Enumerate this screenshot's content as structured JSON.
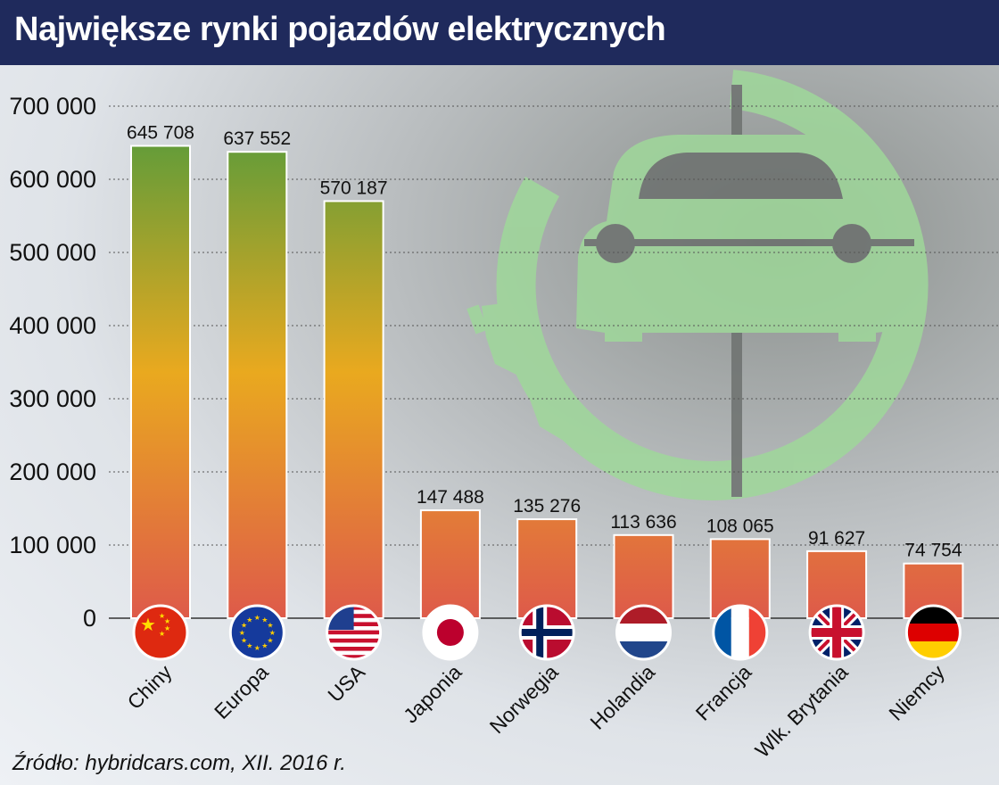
{
  "title": "Największe rynki pojazdów elektrycznych",
  "source": "Źródło: hybridcars.com, XII. 2016 r.",
  "colors": {
    "title_bg": "#1f2a5c",
    "bar_top": "#4e9a3d",
    "bar_mid": "#e9a91f",
    "bar_bottom": "#de5a4a",
    "grid": "#555555",
    "decor_green": "#9fd89a"
  },
  "chart_data": {
    "type": "bar",
    "title": "Największe rynki pojazdów elektrycznych",
    "xlabel": "",
    "ylabel": "",
    "ylim": [
      0,
      700000
    ],
    "yticks": [
      0,
      100000,
      200000,
      300000,
      400000,
      500000,
      600000,
      700000
    ],
    "ytick_labels": [
      "0",
      "100 000",
      "200 000",
      "300 000",
      "400 000",
      "500 000",
      "600 000",
      "700 000"
    ],
    "grid": true,
    "categories": [
      "Chiny",
      "Europa",
      "USA",
      "Japonia",
      "Norwegia",
      "Holandia",
      "Francja",
      "Wlk. Brytania",
      "Niemcy"
    ],
    "values": [
      645708,
      637552,
      570187,
      147488,
      135276,
      113636,
      108065,
      91627,
      74754
    ],
    "value_labels": [
      "645 708",
      "637 552",
      "570 187",
      "147 488",
      "135 276",
      "113 636",
      "108 065",
      "91 627",
      "74 754"
    ],
    "flags": [
      "china-flag-icon",
      "eu-flag-icon",
      "usa-flag-icon",
      "japan-flag-icon",
      "norway-flag-icon",
      "netherlands-flag-icon",
      "france-flag-icon",
      "uk-flag-icon",
      "germany-flag-icon"
    ]
  }
}
